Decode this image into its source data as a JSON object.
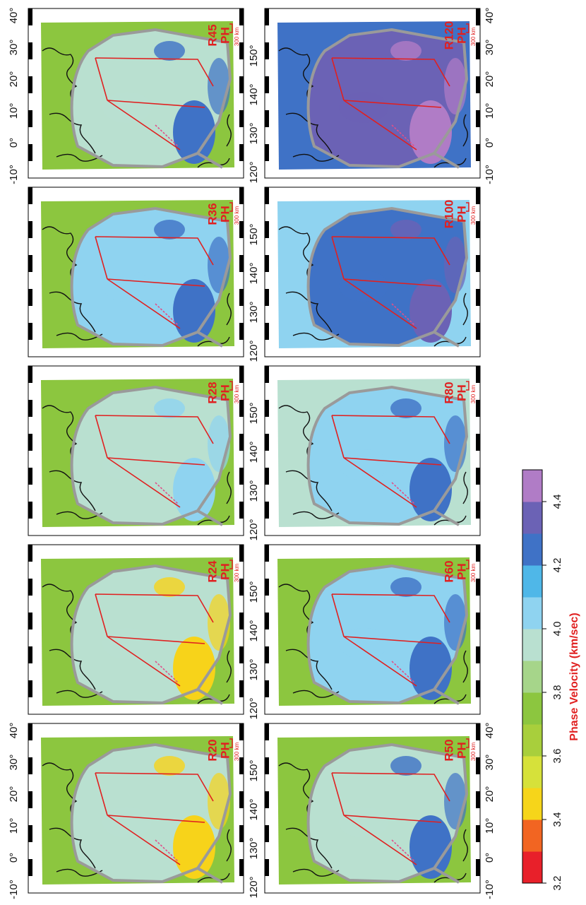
{
  "panels": [
    {
      "label": "R20",
      "sublabel": "PH",
      "scale": "300 km"
    },
    {
      "label": "R24",
      "sublabel": "PH",
      "scale": "300 km"
    },
    {
      "label": "R28",
      "sublabel": "PH",
      "scale": "300 km"
    },
    {
      "label": "R36",
      "sublabel": "PH",
      "scale": "300 km"
    },
    {
      "label": "R45",
      "sublabel": "PH",
      "scale": "300 km"
    },
    {
      "label": "R50",
      "sublabel": "PH",
      "scale": "300 km"
    },
    {
      "label": "R60",
      "sublabel": "PH",
      "scale": "300 km"
    },
    {
      "label": "R80",
      "sublabel": "PH",
      "scale": "300 km"
    },
    {
      "label": "R100",
      "sublabel": "PH",
      "scale": "300 km"
    },
    {
      "label": "R120",
      "sublabel": "PH",
      "scale": "300 km"
    }
  ],
  "latitude_labels": [
    "40°",
    "30°",
    "20°",
    "10°",
    "0°",
    "-10°"
  ],
  "longitude_labels": [
    "120°",
    "130°",
    "140°",
    "150°"
  ],
  "colorbar": {
    "ticks": [
      "3.2",
      "3.4",
      "3.6",
      "3.8",
      "4.0",
      "4.2",
      "4.4"
    ],
    "label": "Phase Velocity (km/sec)"
  }
}
